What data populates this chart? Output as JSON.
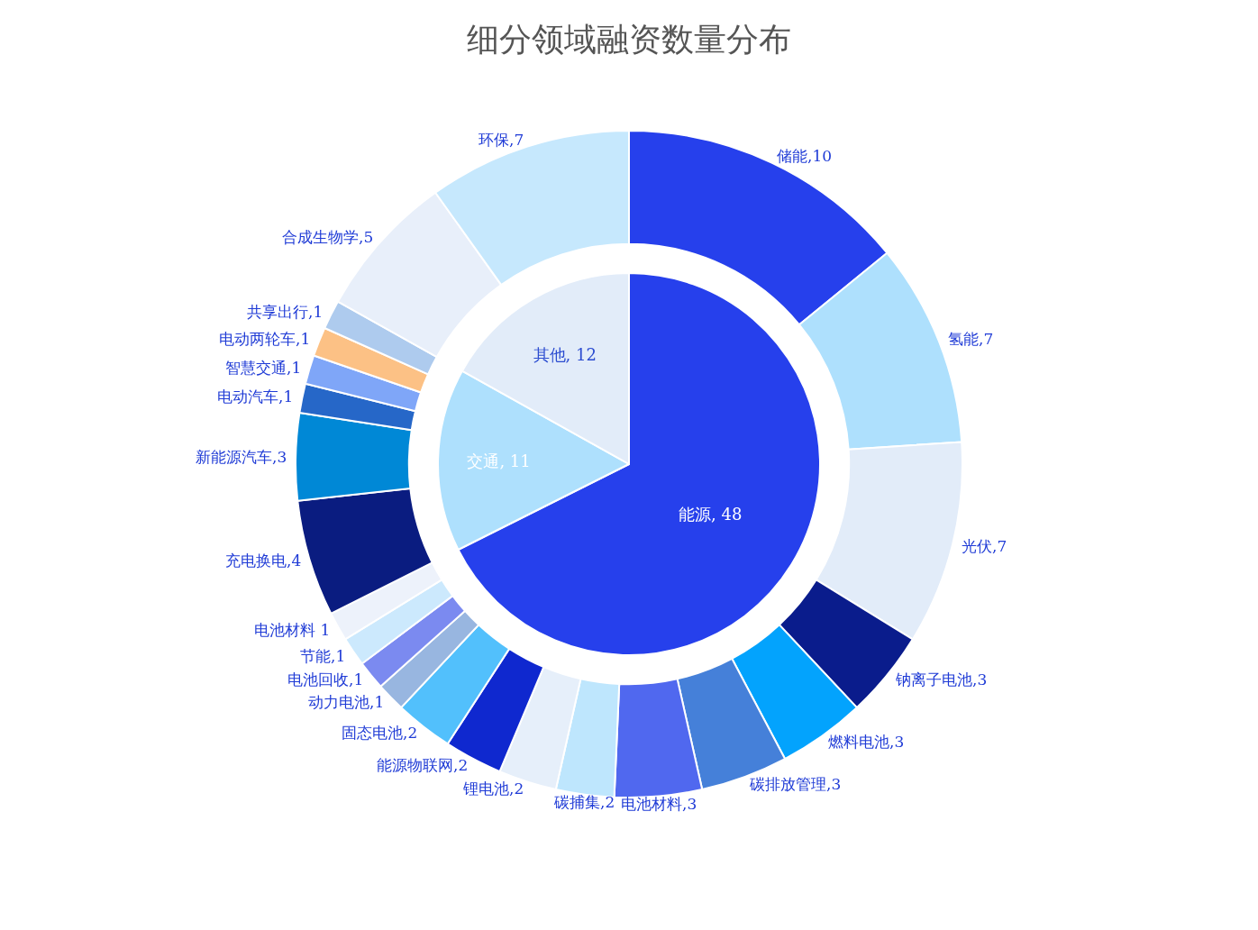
{
  "chart_data": [
    {
      "type": "pie",
      "title": "细分领域融资数量分布",
      "categories": [
        "能源",
        "交通",
        "其他"
      ],
      "values": [
        48,
        11,
        12
      ],
      "colors": [
        "#2640ec",
        "#aee0fd",
        "#e2ecf9"
      ],
      "value_labels": [
        ", 48",
        ", 11",
        ", 12"
      ]
    },
    {
      "type": "donut",
      "categories": [
        "储能",
        "氢能",
        "光伏",
        "钠离子电池",
        "燃料电池",
        "碳排放管理",
        "电池材料",
        "碳捕集",
        "锂电池",
        "能源物联网",
        "固态电池",
        "动力电池",
        "电池回收",
        "节能",
        "电池材料",
        "充电换电",
        "新能源汽车",
        "电动汽车",
        "智慧交通",
        "电动两轮车",
        "共享出行",
        "合成生物学",
        "环保"
      ],
      "values": [
        10,
        7,
        7,
        3,
        3,
        3,
        3,
        2,
        2,
        2,
        2,
        1,
        1,
        1,
        1,
        4,
        3,
        1,
        1,
        1,
        1,
        5,
        7
      ],
      "colors": [
        "#2640ec",
        "#aee0fd",
        "#e2ecf9",
        "#0a1c8c",
        "#03a3fd",
        "#4580d9",
        "#5068ef",
        "#bee6fd",
        "#e6effa",
        "#0f28cf",
        "#52c0fc",
        "#98b6e0",
        "#7b8af0",
        "#cce9fd",
        "#edf2fb",
        "#0a1c80",
        "#0088d6",
        "#2667c8",
        "#7fa6f8",
        "#fcc185",
        "#aecbee",
        "#e8effa",
        "#c6e8fd"
      ],
      "value_labels": [
        ",10",
        ",7",
        ",7",
        ",3",
        ",3",
        ",3",
        ",3",
        ",2",
        ",2",
        ",2",
        ",2",
        ",1",
        ",1",
        ",1",
        " 1",
        ",4",
        ",3",
        ",1",
        ",1",
        ",1",
        ",1",
        ",5",
        ",7"
      ]
    }
  ]
}
